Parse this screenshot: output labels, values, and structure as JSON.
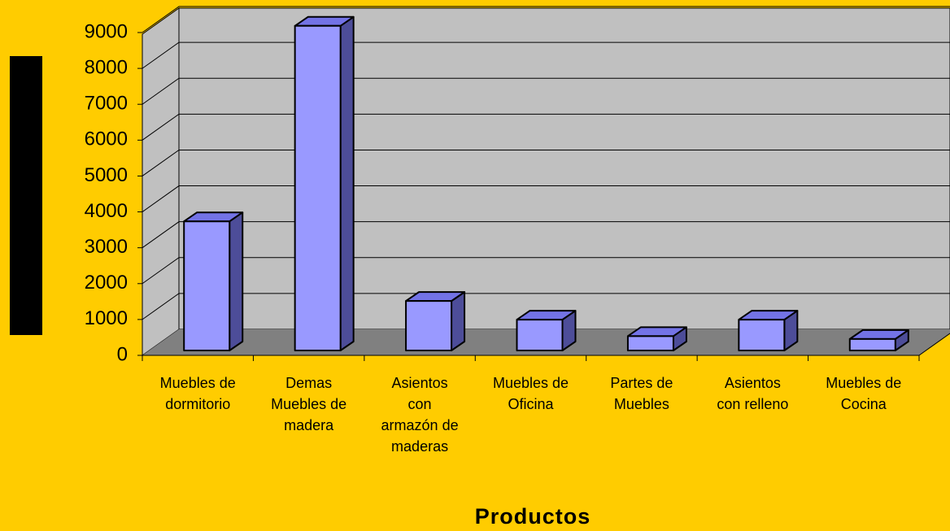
{
  "chart_data": {
    "type": "bar",
    "x_label": "Productos",
    "categories": [
      [
        "Muebles de",
        "dormitorio"
      ],
      [
        "Demas",
        "Muebles de",
        "madera"
      ],
      [
        "Asientos",
        "con",
        "armazón de",
        "maderas"
      ],
      [
        "Muebles de",
        "Oficina"
      ],
      [
        "Partes de",
        "Muebles"
      ],
      [
        "Asientos",
        "con relleno"
      ],
      [
        "Muebles de",
        "Cocina"
      ]
    ],
    "values": [
      3600,
      9050,
      1380,
      860,
      400,
      860,
      320
    ],
    "color": "#9999FF",
    "ylim": [
      0,
      9000
    ],
    "yticks": [
      0,
      1000,
      2000,
      3000,
      4000,
      5000,
      6000,
      7000,
      8000,
      9000
    ],
    "grid": true
  }
}
